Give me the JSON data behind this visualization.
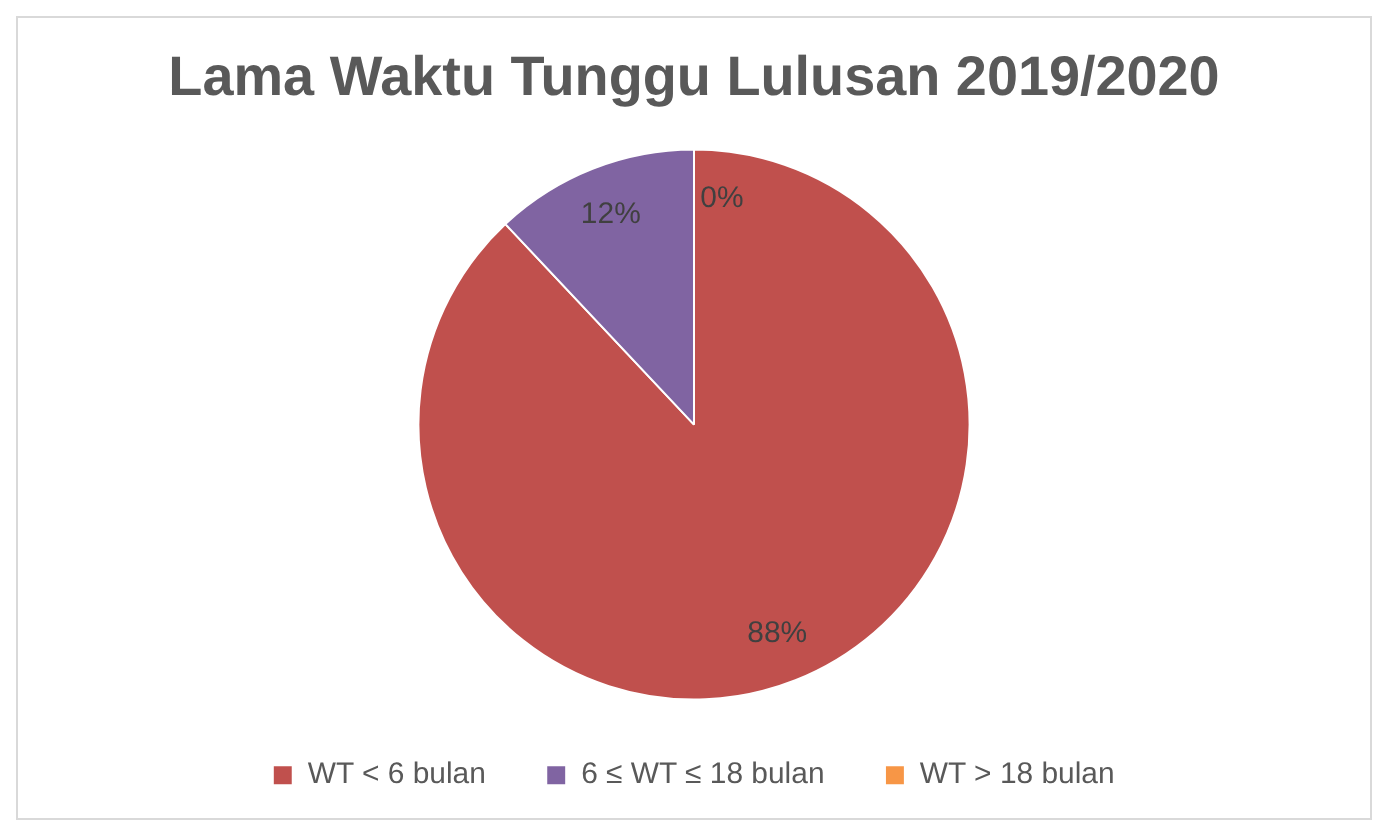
{
  "chart_data": {
    "type": "pie",
    "title": "Lama Waktu Tunggu Lulusan 2019/2020",
    "categories": [
      "WT < 6 bulan",
      "6 ≤ WT ≤ 18 bulan",
      "WT > 18 bulan"
    ],
    "values": [
      88,
      12,
      0
    ],
    "colors": [
      "#c0504d",
      "#8064a2",
      "#f79646"
    ],
    "value_labels": [
      "88%",
      "12%",
      "0%"
    ],
    "legend": "bottom"
  }
}
